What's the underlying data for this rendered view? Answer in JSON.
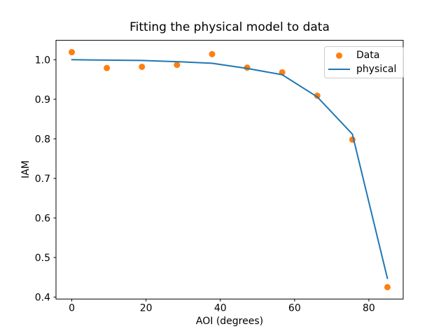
{
  "chart_data": {
    "type": "line",
    "title": "Fitting the physical model to data",
    "xlabel": "AOI (degrees)",
    "ylabel": "IAM",
    "x": [
      0,
      9.44,
      18.89,
      28.33,
      37.78,
      47.22,
      56.67,
      66.11,
      75.56,
      85
    ],
    "series": [
      {
        "name": "Data",
        "style": "scatter",
        "color": "#ff7f0e",
        "values": [
          1.019,
          0.979,
          0.982,
          0.987,
          1.014,
          0.98,
          0.968,
          0.909,
          0.798,
          0.425
        ]
      },
      {
        "name": "physical",
        "style": "line",
        "color": "#1f77b4",
        "values": [
          1.0,
          0.999,
          0.998,
          0.995,
          0.991,
          0.978,
          0.962,
          0.906,
          0.812,
          0.447
        ]
      }
    ],
    "xticks": [
      0,
      20,
      40,
      60,
      80
    ],
    "xtick_labels": [
      "0",
      "20",
      "40",
      "60",
      "80"
    ],
    "yticks": [
      0.4,
      0.5,
      0.6,
      0.7,
      0.8,
      0.9,
      1.0
    ],
    "ytick_labels": [
      "0.4",
      "0.5",
      "0.6",
      "0.7",
      "0.8",
      "0.9",
      "1.0"
    ],
    "xlim": [
      -4.25,
      89.25
    ],
    "ylim": [
      0.395,
      1.049
    ],
    "grid": false,
    "legend_position": "upper right",
    "axis_color": "#000000",
    "background_color": "#ffffff"
  }
}
